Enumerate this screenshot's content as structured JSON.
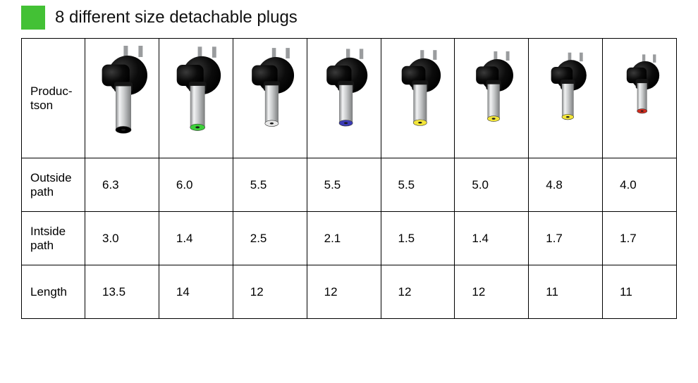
{
  "header": {
    "square_color": "#43c135",
    "title": "8 different size detachable plugs"
  },
  "row_labels": {
    "production": "Produc-\ntson",
    "outside": "Outside path",
    "inside": "Intside path",
    "length": "Length"
  },
  "plugs": [
    {
      "tip_color": "#000000",
      "barrel_scale": 1.0,
      "body_scale": 1.0,
      "outside": "6.3",
      "inside": "3.0",
      "length": "13.5"
    },
    {
      "tip_color": "#3dcf3a",
      "barrel_scale": 0.95,
      "body_scale": 0.97,
      "outside": "6.0",
      "inside": "1.4",
      "length": "14"
    },
    {
      "tip_color": "#e8e8e8",
      "barrel_scale": 0.87,
      "body_scale": 0.93,
      "outside": "5.5",
      "inside": "2.5",
      "length": "12"
    },
    {
      "tip_color": "#3b3bb5",
      "barrel_scale": 0.87,
      "body_scale": 0.9,
      "outside": "5.5",
      "inside": "2.1",
      "length": "12"
    },
    {
      "tip_color": "#f3e63a",
      "barrel_scale": 0.87,
      "body_scale": 0.86,
      "outside": "5.5",
      "inside": "1.5",
      "length": "12"
    },
    {
      "tip_color": "#f3e63a",
      "barrel_scale": 0.79,
      "body_scale": 0.82,
      "outside": "5.0",
      "inside": "1.4",
      "length": "12"
    },
    {
      "tip_color": "#f3e63a",
      "barrel_scale": 0.76,
      "body_scale": 0.78,
      "outside": "4.8",
      "inside": "1.7",
      "length": "11"
    },
    {
      "tip_color": "#d22c1f",
      "barrel_scale": 0.64,
      "body_scale": 0.72,
      "outside": "4.0",
      "inside": "1.7",
      "length": "11"
    }
  ],
  "style": {
    "body_color": "#0b0b0b",
    "body_highlight": "#3a3a3a",
    "barrel_color": "#c7c9ca",
    "barrel_highlight": "#f2f3f4",
    "pin_color": "#9a9c9e"
  }
}
